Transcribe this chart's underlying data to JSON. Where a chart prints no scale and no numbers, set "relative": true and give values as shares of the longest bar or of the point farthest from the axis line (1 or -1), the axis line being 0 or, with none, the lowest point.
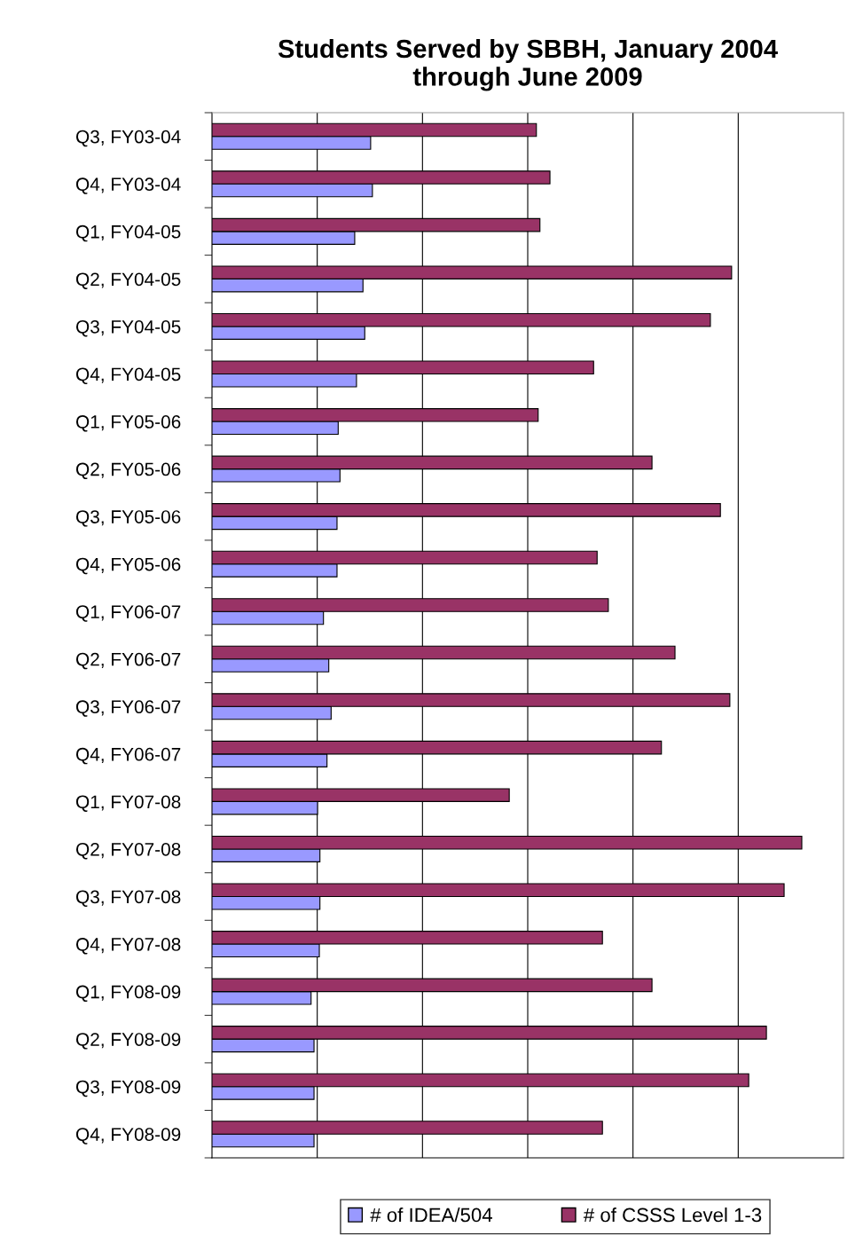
{
  "chart_data": {
    "type": "bar",
    "orientation": "horizontal",
    "relative": true,
    "title": "Students Served by SBBH, January 2004\nthrough June 2009",
    "categories": [
      "Q3, FY03-04",
      "Q4, FY03-04",
      "Q1, FY04-05",
      "Q2, FY04-05",
      "Q3, FY04-05",
      "Q4, FY04-05",
      "Q1, FY05-06",
      "Q2, FY05-06",
      "Q3, FY05-06",
      "Q4, FY05-06",
      "Q1, FY06-07",
      "Q2, FY06-07",
      "Q3, FY06-07",
      "Q4, FY06-07",
      "Q1, FY07-08",
      "Q2, FY07-08",
      "Q3, FY07-08",
      "Q4, FY07-08",
      "Q1, FY08-09",
      "Q2, FY08-09",
      "Q3, FY08-09",
      "Q4, FY08-09"
    ],
    "series": [
      {
        "name": "# of IDEA/504",
        "color": "#9999ff",
        "values": [
          0.269,
          0.272,
          0.242,
          0.256,
          0.259,
          0.245,
          0.214,
          0.217,
          0.212,
          0.212,
          0.189,
          0.198,
          0.202,
          0.195,
          0.179,
          0.183,
          0.183,
          0.182,
          0.168,
          0.173,
          0.173,
          0.173
        ]
      },
      {
        "name": "# of CSSS Level 1-3",
        "color": "#993366",
        "values": [
          0.55,
          0.573,
          0.556,
          0.881,
          0.845,
          0.647,
          0.553,
          0.746,
          0.862,
          0.653,
          0.672,
          0.785,
          0.878,
          0.762,
          0.504,
          1,
          0.97,
          0.662,
          0.746,
          0.94,
          0.91,
          0.662
        ]
      }
    ],
    "grid": "x",
    "legend": "bottom",
    "tick_labels": "y"
  }
}
